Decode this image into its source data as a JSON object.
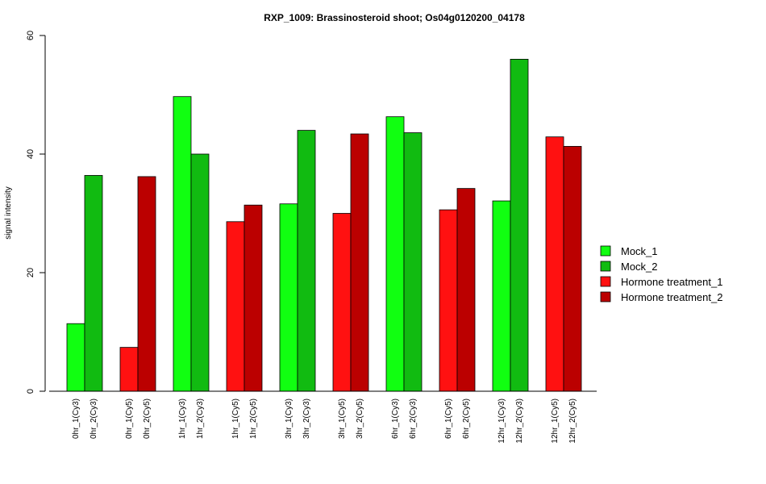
{
  "chart_data": {
    "type": "bar",
    "title": "RXP_1009: Brassinosteroid shoot; Os04g0120200_04178",
    "xlabel": "",
    "ylabel": "signal intensity",
    "ylim": [
      0,
      60
    ],
    "yticks": [
      0,
      20,
      40,
      60
    ],
    "grid": false,
    "legend_position": "right",
    "categories": [
      "0hr_1(Cy3)",
      "0hr_2(Cy3)",
      "0hr_1(Cy5)",
      "0hr_2(Cy5)",
      "1hr_1(Cy3)",
      "1hr_2(Cy3)",
      "1hr_1(Cy5)",
      "1hr_2(Cy5)",
      "3hr_1(Cy3)",
      "3hr_2(Cy3)",
      "3hr_1(Cy5)",
      "3hr_2(Cy5)",
      "6hr_1(Cy3)",
      "6hr_2(Cy3)",
      "6hr_1(Cy5)",
      "6hr_2(Cy5)",
      "12hr_1(Cy3)",
      "12hr_2(Cy3)",
      "12hr_1(Cy5)",
      "12hr_2(Cy5)"
    ],
    "values": [
      11.4,
      36.4,
      7.4,
      36.2,
      49.7,
      40.0,
      28.6,
      31.4,
      31.6,
      44.0,
      30.0,
      43.4,
      46.3,
      43.6,
      30.6,
      34.2,
      32.1,
      56.0,
      42.9,
      41.3
    ],
    "bar_series_index": [
      0,
      1,
      2,
      3,
      0,
      1,
      2,
      3,
      0,
      1,
      2,
      3,
      0,
      1,
      2,
      3,
      0,
      1,
      2,
      3
    ],
    "legend": [
      {
        "name": "Mock_1",
        "color": "#11ff11"
      },
      {
        "name": "Mock_2",
        "color": "#11bb11"
      },
      {
        "name": "Hormone treatment_1",
        "color": "#ff1111"
      },
      {
        "name": "Hormone treatment_2",
        "color": "#bb0000"
      }
    ]
  }
}
